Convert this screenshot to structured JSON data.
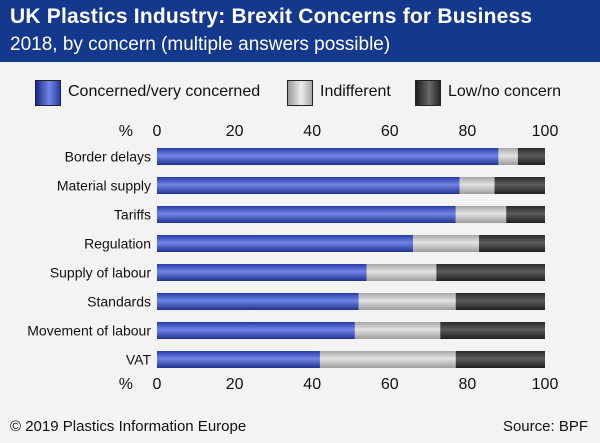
{
  "header": {
    "title": "UK Plastics Industry: Brexit Concerns for Business",
    "subtitle": "2018, by concern (multiple answers possible)"
  },
  "footer": {
    "copyright": "© 2019 Plastics Information Europe",
    "source": "Source: BPF"
  },
  "colors": {
    "header_bg": "#14398c",
    "concerned": "#3b4fc0",
    "indifferent": "#bdbdbd",
    "low": "#3a3a3a"
  },
  "chart_data": {
    "type": "bar",
    "orientation": "horizontal",
    "stacked": true,
    "categories": [
      "Border delays",
      "Material supply",
      "Tariffs",
      "Regulation",
      "Supply of labour",
      "Standards",
      "Movement of labour",
      "VAT"
    ],
    "series": [
      {
        "name": "Concerned/very concerned",
        "values": [
          88,
          78,
          77,
          66,
          54,
          52,
          51,
          42
        ]
      },
      {
        "name": "Indifferent",
        "values": [
          5,
          9,
          13,
          17,
          18,
          25,
          22,
          35
        ]
      },
      {
        "name": "Low/no concern",
        "values": [
          7,
          13,
          10,
          17,
          28,
          23,
          27,
          23
        ]
      }
    ],
    "xlabel": "%",
    "xlim": [
      0,
      100
    ],
    "xticks": [
      0,
      20,
      40,
      60,
      80,
      100
    ],
    "grid": false,
    "legend_position": "top"
  }
}
